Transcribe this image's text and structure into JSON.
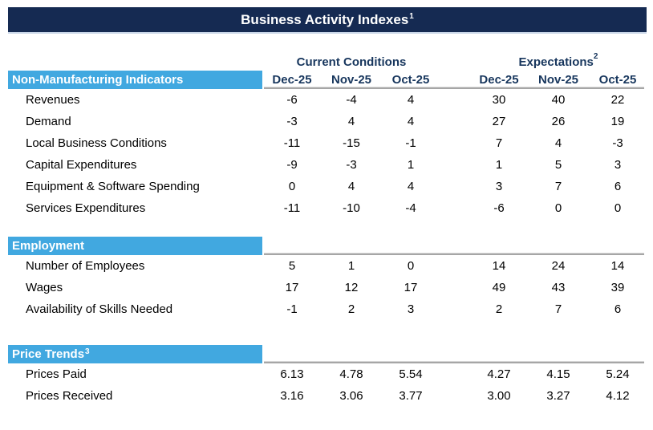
{
  "colors": {
    "title_bar": "#152A52",
    "title_bar_text": "#FFFFFF",
    "title_bar_bottom_border": "#C9D6E8",
    "header_text": "#17365D",
    "section_bar": "#41A8E0",
    "section_bar_text": "#FFFFFF",
    "rule_line": "#A6A6A6",
    "body_text": "#000000",
    "background": "#FFFFFF"
  },
  "chart_data": {
    "type": "table",
    "title": "Business Activity Indexes",
    "title_sup": "1",
    "column_groups": [
      {
        "label": "Current Conditions",
        "sup": "",
        "columns": [
          "Dec-25",
          "Nov-25",
          "Oct-25"
        ]
      },
      {
        "label": "Expectations",
        "sup": "2",
        "columns": [
          "Dec-25",
          "Nov-25",
          "Oct-25"
        ]
      }
    ],
    "sections": [
      {
        "label": "Non-Manufacturing Indicators",
        "sup": "",
        "rows": [
          {
            "label": "Revenues",
            "values": [
              "-6",
              "-4",
              "4",
              "30",
              "40",
              "22"
            ]
          },
          {
            "label": "Demand",
            "values": [
              "-3",
              "4",
              "4",
              "27",
              "26",
              "19"
            ]
          },
          {
            "label": "Local Business Conditions",
            "values": [
              "-11",
              "-15",
              "-1",
              "7",
              "4",
              "-3"
            ]
          },
          {
            "label": "Capital Expenditures",
            "values": [
              "-9",
              "-3",
              "1",
              "1",
              "5",
              "3"
            ]
          },
          {
            "label": "Equipment & Software Spending",
            "values": [
              "0",
              "4",
              "4",
              "3",
              "7",
              "6"
            ]
          },
          {
            "label": "Services Expenditures",
            "values": [
              "-11",
              "-10",
              "-4",
              "-6",
              "0",
              "0"
            ]
          }
        ]
      },
      {
        "label": "Employment",
        "sup": "",
        "rows": [
          {
            "label": "Number of Employees",
            "values": [
              "5",
              "1",
              "0",
              "14",
              "24",
              "14"
            ]
          },
          {
            "label": "Wages",
            "values": [
              "17",
              "12",
              "17",
              "49",
              "43",
              "39"
            ]
          },
          {
            "label": "Availability of Skills Needed",
            "values": [
              "-1",
              "2",
              "3",
              "2",
              "7",
              "6"
            ]
          }
        ]
      },
      {
        "label": "Price Trends",
        "sup": "3",
        "rows": [
          {
            "label": "Prices Paid",
            "values": [
              "6.13",
              "4.78",
              "5.54",
              "4.27",
              "4.15",
              "5.24"
            ]
          },
          {
            "label": "Prices Received",
            "values": [
              "3.16",
              "3.06",
              "3.77",
              "3.00",
              "3.27",
              "4.12"
            ]
          }
        ]
      }
    ]
  }
}
